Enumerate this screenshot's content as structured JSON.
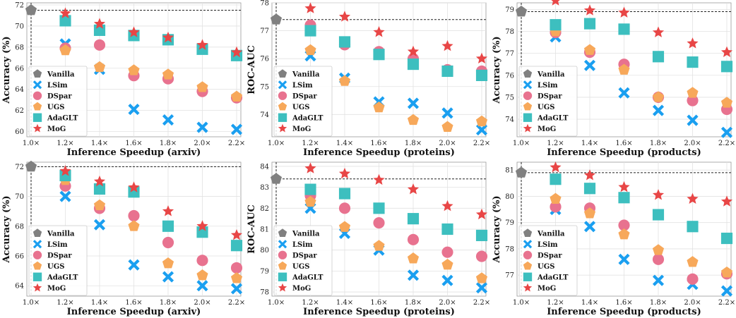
{
  "legend_entries": [
    "Vanilla",
    "LSim",
    "DSpar",
    "UGS",
    "AdaGLT",
    "MoG"
  ],
  "colors": {
    "Vanilla": "#808080",
    "LSim": "#1a9ff0",
    "DSpar": "#e8728f",
    "UGS": "#f7a85a",
    "AdaGLT": "#3dbfbf",
    "MoG": "#e84646"
  },
  "markers": {
    "Vanilla": "pentagon",
    "LSim": "x",
    "DSpar": "circle",
    "UGS": "pentagon",
    "AdaGLT": "square",
    "MoG": "star"
  },
  "chart_data": [
    {
      "type": "scatter",
      "xlabel": "Inference Speedup (arxiv)",
      "ylabel": "Accuracy (%)",
      "x": [
        "1.0×",
        "1.2×",
        "1.4×",
        "1.6×",
        "1.8×",
        "2.0×",
        "2.2×"
      ],
      "ylim": [
        59.5,
        72.2
      ],
      "yticks": [
        60,
        62,
        64,
        66,
        68,
        70,
        72
      ],
      "baseline": 71.5,
      "grid": true,
      "legend": "bottom-left",
      "series": [
        {
          "name": "Vanilla",
          "values": [
            71.5,
            null,
            null,
            null,
            null,
            null,
            null
          ]
        },
        {
          "name": "LSim",
          "values": [
            null,
            68.3,
            65.9,
            62.1,
            61.1,
            60.4,
            60.2
          ]
        },
        {
          "name": "DSpar",
          "values": [
            null,
            67.9,
            68.2,
            65.3,
            65.0,
            63.8,
            63.2
          ]
        },
        {
          "name": "UGS",
          "values": [
            null,
            67.7,
            66.1,
            65.8,
            65.4,
            64.2,
            63.3
          ]
        },
        {
          "name": "AdaGLT",
          "values": [
            null,
            70.5,
            69.6,
            69.1,
            68.7,
            67.8,
            67.2
          ]
        },
        {
          "name": "MoG",
          "values": [
            null,
            71.2,
            70.2,
            69.4,
            68.9,
            68.2,
            67.5
          ]
        }
      ]
    },
    {
      "type": "scatter",
      "xlabel": "Inference Speedup (proteins)",
      "ylabel": "ROC-AUC",
      "x": [
        "1.0×",
        "1.2×",
        "1.4×",
        "1.6×",
        "1.8×",
        "2.0×",
        "2.2×"
      ],
      "ylim": [
        73.2,
        78.0
      ],
      "yticks": [
        74,
        75,
        76,
        77,
        78
      ],
      "baseline": 77.4,
      "grid": true,
      "legend": "bottom-left",
      "series": [
        {
          "name": "Vanilla",
          "values": [
            77.4,
            null,
            null,
            null,
            null,
            null,
            null
          ]
        },
        {
          "name": "LSim",
          "values": [
            null,
            76.1,
            75.3,
            74.45,
            74.4,
            74.05,
            73.45
          ]
        },
        {
          "name": "DSpar",
          "values": [
            null,
            77.2,
            76.5,
            76.25,
            76.0,
            75.6,
            75.55
          ]
        },
        {
          "name": "UGS",
          "values": [
            null,
            76.3,
            75.2,
            74.25,
            73.8,
            73.55,
            73.75
          ]
        },
        {
          "name": "AdaGLT",
          "values": [
            null,
            77.0,
            76.6,
            76.15,
            75.8,
            75.55,
            75.4
          ]
        },
        {
          "name": "MoG",
          "values": [
            null,
            77.8,
            77.5,
            76.95,
            76.25,
            76.45,
            76.0
          ]
        }
      ]
    },
    {
      "type": "scatter",
      "xlabel": "Inference Speedup (products)",
      "ylabel": "Accuracy (%)",
      "x": [
        "1.0×",
        "1.2×",
        "1.4×",
        "1.6×",
        "1.8×",
        "2.0×",
        "2.2×"
      ],
      "ylim": [
        73.2,
        79.3
      ],
      "yticks": [
        74,
        75,
        76,
        77,
        78,
        79
      ],
      "baseline": 78.9,
      "grid": true,
      "legend": "bottom-left",
      "series": [
        {
          "name": "Vanilla",
          "values": [
            78.9,
            null,
            null,
            null,
            null,
            null,
            null
          ]
        },
        {
          "name": "LSim",
          "values": [
            null,
            77.75,
            76.45,
            75.2,
            74.4,
            73.95,
            73.4
          ]
        },
        {
          "name": "DSpar",
          "values": [
            null,
            77.95,
            77.05,
            76.5,
            75.0,
            74.85,
            74.45
          ]
        },
        {
          "name": "UGS",
          "values": [
            null,
            78.0,
            77.15,
            76.25,
            75.0,
            75.2,
            74.75
          ]
        },
        {
          "name": "AdaGLT",
          "values": [
            null,
            78.3,
            78.35,
            78.1,
            76.85,
            76.6,
            76.4
          ]
        },
        {
          "name": "MoG",
          "values": [
            null,
            79.4,
            78.95,
            78.85,
            77.95,
            77.45,
            77.05
          ]
        }
      ]
    },
    {
      "type": "scatter",
      "xlabel": "Inference Speedup (arxiv)",
      "ylabel": "Accuracy (%)",
      "x": [
        "1.0×",
        "1.2×",
        "1.4×",
        "1.6×",
        "1.8×",
        "2.0×",
        "2.2×"
      ],
      "ylim": [
        63.3,
        72.3
      ],
      "yticks": [
        64,
        66,
        68,
        70,
        72
      ],
      "baseline": 72.0,
      "grid": true,
      "legend": "bottom-left",
      "series": [
        {
          "name": "Vanilla",
          "values": [
            72.0,
            null,
            null,
            null,
            null,
            null,
            null
          ]
        },
        {
          "name": "LSim",
          "values": [
            null,
            70.0,
            68.1,
            65.4,
            64.6,
            64.0,
            63.8
          ]
        },
        {
          "name": "DSpar",
          "values": [
            null,
            70.7,
            69.2,
            68.7,
            66.9,
            65.7,
            65.2
          ]
        },
        {
          "name": "UGS",
          "values": [
            null,
            71.1,
            69.4,
            68.0,
            65.5,
            64.7,
            64.5
          ]
        },
        {
          "name": "AdaGLT",
          "values": [
            null,
            71.4,
            70.5,
            70.3,
            68.0,
            67.6,
            66.7
          ]
        },
        {
          "name": "MoG",
          "values": [
            null,
            71.7,
            71.0,
            70.6,
            69.0,
            68.0,
            67.4
          ]
        }
      ]
    },
    {
      "type": "scatter",
      "xlabel": "Inference Speedup (proteins)",
      "ylabel": "ROC-AUC",
      "x": [
        "1.0×",
        "1.2×",
        "1.4×",
        "1.6×",
        "1.8×",
        "2.0×",
        "2.2×"
      ],
      "ylim": [
        77.8,
        84.2
      ],
      "yticks": [
        78,
        79,
        80,
        81,
        82,
        83,
        84
      ],
      "baseline": 83.4,
      "grid": true,
      "legend": "bottom-left",
      "series": [
        {
          "name": "Vanilla",
          "values": [
            83.4,
            null,
            null,
            null,
            null,
            null,
            null
          ]
        },
        {
          "name": "LSim",
          "values": [
            null,
            82.0,
            80.8,
            80.0,
            78.8,
            78.55,
            78.2
          ]
        },
        {
          "name": "DSpar",
          "values": [
            null,
            82.6,
            82.0,
            81.3,
            80.5,
            79.9,
            79.7
          ]
        },
        {
          "name": "UGS",
          "values": [
            null,
            82.3,
            81.1,
            80.2,
            79.6,
            79.3,
            78.65
          ]
        },
        {
          "name": "AdaGLT",
          "values": [
            null,
            82.9,
            82.7,
            82.0,
            81.5,
            81.0,
            80.7
          ]
        },
        {
          "name": "MoG",
          "values": [
            null,
            83.9,
            83.65,
            83.35,
            82.9,
            82.1,
            81.7
          ]
        }
      ]
    },
    {
      "type": "scatter",
      "xlabel": "Inference Speedup (products)",
      "ylabel": "Accuracy (%)",
      "x": [
        "1.0×",
        "1.2×",
        "1.4×",
        "1.6×",
        "1.8×",
        "2.0×",
        "2.2×"
      ],
      "ylim": [
        76.2,
        81.3
      ],
      "yticks": [
        77,
        78,
        79,
        80,
        81
      ],
      "baseline": 80.9,
      "grid": true,
      "legend": "bottom-left",
      "series": [
        {
          "name": "Vanilla",
          "values": [
            80.9,
            null,
            null,
            null,
            null,
            null,
            null
          ]
        },
        {
          "name": "LSim",
          "values": [
            null,
            79.5,
            78.85,
            77.6,
            76.8,
            76.65,
            76.4
          ]
        },
        {
          "name": "DSpar",
          "values": [
            null,
            79.6,
            79.55,
            78.9,
            77.6,
            76.85,
            77.05
          ]
        },
        {
          "name": "UGS",
          "values": [
            null,
            79.9,
            79.35,
            78.55,
            77.95,
            77.5,
            77.1
          ]
        },
        {
          "name": "AdaGLT",
          "values": [
            null,
            80.65,
            80.3,
            79.95,
            79.3,
            78.85,
            78.4
          ]
        },
        {
          "name": "MoG",
          "values": [
            null,
            81.1,
            80.8,
            80.35,
            80.05,
            79.9,
            79.8
          ]
        }
      ]
    }
  ]
}
